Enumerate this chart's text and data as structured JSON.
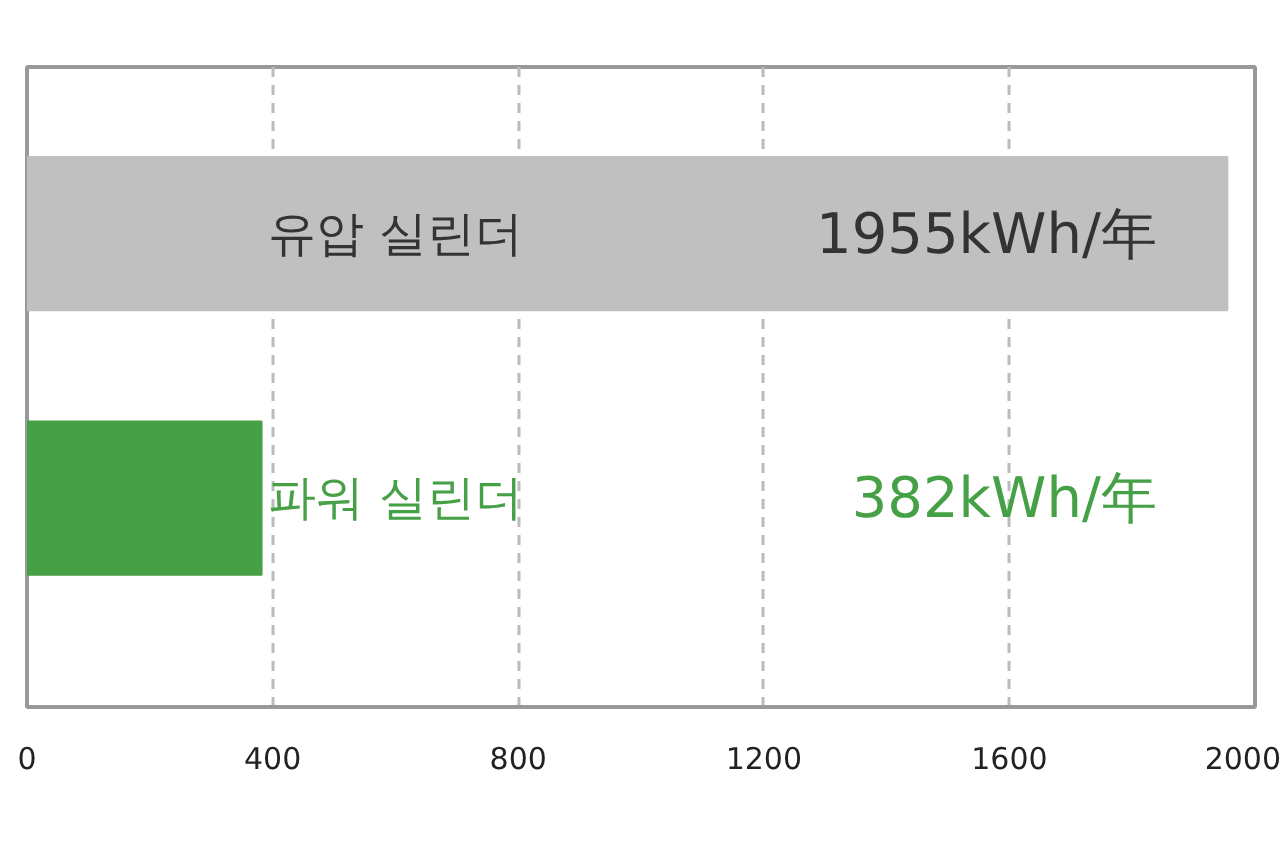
{
  "chart_data": {
    "type": "bar",
    "orientation": "horizontal",
    "categories": [
      "유압 실린더",
      "파워 실린더"
    ],
    "values": [
      1955,
      382
    ],
    "colors": [
      "#c0c0c0",
      "#46a046"
    ],
    "value_labels": [
      "1955kWh/年",
      "382kWh/年"
    ],
    "xlim": [
      0,
      2000
    ],
    "xticks": [
      0,
      400,
      800,
      1200,
      1600,
      2000
    ],
    "grid": "x"
  }
}
